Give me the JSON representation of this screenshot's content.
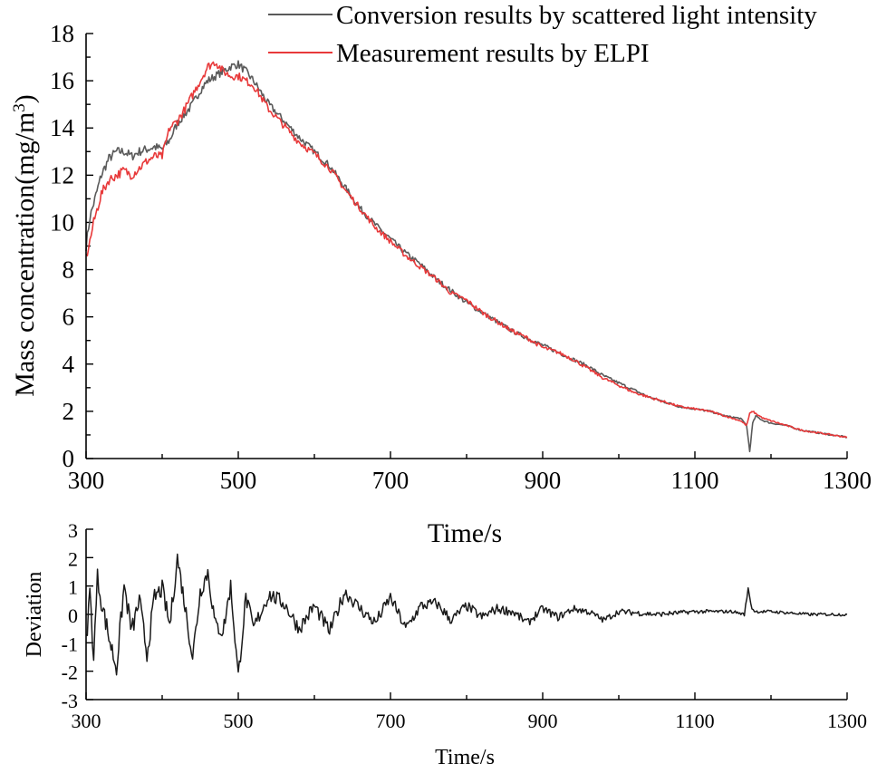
{
  "chart_data": [
    {
      "type": "line",
      "name": "top-panel",
      "xlabel": "Time/s",
      "ylabel": "Mass concentration(mg/m",
      "ylabel_superscript": "3",
      "ylabel_close": ")",
      "xlim": [
        300,
        1300
      ],
      "ylim": [
        0,
        18
      ],
      "xticks": [
        300,
        500,
        700,
        900,
        1100,
        1300
      ],
      "xticks_labels": [
        "300",
        "500",
        "700",
        "900",
        "1100",
        "1300"
      ],
      "yticks": [
        0,
        2,
        4,
        6,
        8,
        10,
        12,
        14,
        16,
        18
      ],
      "yticks_labels": [
        "0",
        "2",
        "4",
        "6",
        "8",
        "10",
        "12",
        "14",
        "16",
        "18"
      ],
      "legend_position": "top-right",
      "series": [
        {
          "name": "Conversion results by scattered light intensity",
          "color": "#5a5a5a",
          "x": [
            300,
            305,
            310,
            320,
            330,
            340,
            350,
            360,
            370,
            380,
            390,
            400,
            410,
            420,
            430,
            440,
            450,
            460,
            470,
            480,
            490,
            500,
            510,
            520,
            530,
            540,
            560,
            580,
            600,
            620,
            640,
            660,
            680,
            700,
            720,
            740,
            760,
            780,
            800,
            820,
            840,
            860,
            880,
            900,
            920,
            940,
            960,
            980,
            1000,
            1020,
            1040,
            1060,
            1080,
            1100,
            1120,
            1140,
            1160,
            1168,
            1172,
            1176,
            1180,
            1190,
            1200,
            1220,
            1240,
            1260,
            1280,
            1300
          ],
          "y": [
            9.0,
            10.2,
            10.8,
            12.0,
            12.7,
            13.0,
            13.0,
            12.8,
            13.0,
            13.1,
            13.2,
            13.1,
            13.5,
            14.2,
            14.6,
            15.0,
            15.6,
            16.0,
            16.2,
            16.4,
            16.6,
            16.7,
            16.4,
            16.0,
            15.5,
            15.0,
            14.3,
            13.6,
            13.0,
            12.4,
            11.5,
            10.6,
            9.9,
            9.3,
            8.7,
            8.2,
            7.6,
            7.1,
            6.6,
            6.2,
            5.8,
            5.4,
            5.1,
            4.8,
            4.5,
            4.2,
            3.9,
            3.5,
            3.2,
            2.9,
            2.6,
            2.4,
            2.2,
            2.1,
            2.0,
            1.8,
            1.7,
            1.4,
            0.3,
            1.5,
            1.8,
            1.6,
            1.5,
            1.4,
            1.2,
            1.1,
            1.0,
            0.9
          ]
        },
        {
          "name": "Measurement results by  ELPI",
          "color": "#e8393a",
          "x": [
            300,
            305,
            310,
            320,
            330,
            340,
            350,
            360,
            370,
            380,
            390,
            400,
            410,
            420,
            430,
            440,
            450,
            460,
            470,
            480,
            490,
            500,
            510,
            520,
            530,
            540,
            560,
            580,
            600,
            620,
            640,
            660,
            680,
            700,
            720,
            740,
            760,
            780,
            800,
            820,
            840,
            860,
            880,
            900,
            920,
            940,
            960,
            980,
            1000,
            1020,
            1040,
            1060,
            1080,
            1100,
            1120,
            1140,
            1160,
            1168,
            1172,
            1176,
            1180,
            1190,
            1200,
            1220,
            1240,
            1260,
            1280,
            1300
          ],
          "y": [
            8.5,
            9.2,
            10.0,
            11.2,
            11.8,
            12.0,
            12.2,
            12.0,
            12.3,
            12.6,
            12.8,
            12.8,
            14.0,
            14.3,
            14.8,
            15.4,
            16.0,
            16.6,
            16.8,
            16.4,
            16.2,
            16.2,
            16.0,
            15.8,
            15.3,
            14.8,
            14.1,
            13.4,
            12.9,
            12.3,
            11.4,
            10.6,
            9.8,
            9.2,
            8.6,
            8.1,
            7.6,
            7.0,
            6.7,
            6.2,
            5.8,
            5.4,
            5.1,
            4.7,
            4.5,
            4.2,
            3.8,
            3.4,
            3.1,
            2.8,
            2.6,
            2.4,
            2.2,
            2.1,
            2.0,
            1.8,
            1.6,
            1.4,
            1.9,
            2.0,
            1.9,
            1.7,
            1.6,
            1.4,
            1.2,
            1.1,
            1.0,
            0.9
          ]
        }
      ]
    },
    {
      "type": "line",
      "name": "bottom-panel",
      "xlabel": "Time/s",
      "ylabel": "Deviation",
      "xlim": [
        300,
        1300
      ],
      "ylim": [
        -3,
        3
      ],
      "xticks": [
        300,
        500,
        700,
        900,
        1100,
        1300
      ],
      "xticks_labels": [
        "300",
        "500",
        "700",
        "900",
        "1100",
        "1300"
      ],
      "yticks": [
        -3,
        -2,
        -1,
        0,
        1,
        2,
        3
      ],
      "yticks_labels": [
        "-3",
        "-2",
        "-1",
        "0",
        "1",
        "2",
        "3"
      ],
      "series": [
        {
          "name": "Deviation",
          "color": "#1a1a1a",
          "x": [
            300,
            305,
            310,
            315,
            320,
            330,
            340,
            350,
            360,
            370,
            380,
            390,
            400,
            410,
            420,
            430,
            440,
            450,
            460,
            470,
            480,
            490,
            500,
            510,
            520,
            540,
            560,
            580,
            600,
            620,
            640,
            660,
            680,
            700,
            720,
            740,
            760,
            780,
            800,
            820,
            840,
            860,
            880,
            900,
            920,
            940,
            960,
            980,
            1000,
            1050,
            1100,
            1150,
            1165,
            1170,
            1175,
            1180,
            1200,
            1250,
            1300
          ],
          "y": [
            -1.0,
            0.8,
            -1.5,
            1.3,
            0.5,
            -0.8,
            -1.9,
            1.0,
            -0.6,
            0.5,
            -1.4,
            0.6,
            0.9,
            -0.4,
            2.0,
            0.3,
            -1.5,
            0.8,
            1.5,
            -0.4,
            -0.6,
            1.0,
            -2.2,
            0.6,
            -0.5,
            0.7,
            0.4,
            -0.5,
            0.3,
            -0.6,
            0.8,
            0.2,
            -0.3,
            0.6,
            -0.5,
            0.3,
            0.4,
            -0.2,
            0.3,
            -0.1,
            0.2,
            0.1,
            -0.3,
            0.2,
            -0.1,
            0.2,
            0.1,
            -0.2,
            0.1,
            0.0,
            0.1,
            0.1,
            0.0,
            0.9,
            0.2,
            0.1,
            0.1,
            0.0,
            0.0
          ]
        }
      ]
    }
  ]
}
